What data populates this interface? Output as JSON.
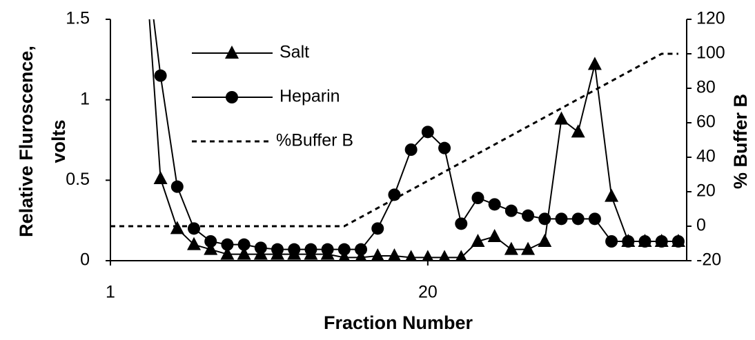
{
  "chart_data": {
    "type": "line",
    "xlabel": "Fraction Number",
    "ylabel": [
      "Relative Fluroscence,",
      "volts"
    ],
    "y2label": "% Buffer B",
    "xlim": [
      1,
      35.5
    ],
    "xticks": [
      1,
      20
    ],
    "ylim": [
      0,
      1.5
    ],
    "yticks": [
      0,
      0.5,
      1,
      1.5
    ],
    "y2lim": [
      -20,
      120
    ],
    "y2ticks": [
      -20,
      0,
      20,
      40,
      60,
      80,
      100,
      120
    ],
    "grid": false,
    "series": [
      {
        "name": "Salt",
        "color": "#000000",
        "marker": "triangle",
        "dash": false,
        "x": [
          3,
          4,
          5,
          6,
          7,
          8,
          9,
          10,
          11,
          12,
          13,
          14,
          15,
          16,
          17,
          18,
          19,
          20,
          21,
          22,
          23,
          24,
          25,
          26,
          27,
          28,
          29,
          30,
          31,
          32,
          33,
          34,
          35
        ],
        "values": [
          2,
          0.51,
          0.2,
          0.1,
          0.07,
          0.04,
          0.04,
          0.04,
          0.04,
          0.04,
          0.04,
          0.04,
          0.02,
          0.02,
          0.03,
          0.03,
          0.02,
          0.02,
          0.02,
          0.02,
          0.12,
          0.15,
          0.07,
          0.07,
          0.12,
          0.88,
          0.8,
          1.22,
          0.4,
          0.12,
          0.12,
          0.12,
          0.12
        ]
      },
      {
        "name": "Heparin",
        "color": "#000000",
        "marker": "circle",
        "dash": false,
        "x": [
          3,
          4,
          5,
          6,
          7,
          8,
          9,
          10,
          11,
          12,
          13,
          14,
          15,
          16,
          17,
          18,
          19,
          20,
          21,
          22,
          23,
          24,
          25,
          26,
          27,
          28,
          29,
          30,
          31,
          32,
          33,
          34,
          35
        ],
        "values": [
          2,
          1.15,
          0.46,
          0.2,
          0.12,
          0.1,
          0.1,
          0.08,
          0.07,
          0.07,
          0.07,
          0.07,
          0.07,
          0.07,
          0.2,
          0.41,
          0.69,
          0.8,
          0.7,
          0.23,
          0.39,
          0.35,
          0.31,
          0.28,
          0.26,
          0.26,
          0.26,
          0.26,
          0.12,
          0.12,
          0.12,
          0.12,
          0.12
        ]
      },
      {
        "name": "%Buffer B",
        "color": "#000000",
        "marker": "none",
        "dash": true,
        "axis": "y2",
        "x": [
          1,
          15,
          34,
          35
        ],
        "values": [
          0,
          0,
          100,
          100
        ]
      }
    ]
  }
}
